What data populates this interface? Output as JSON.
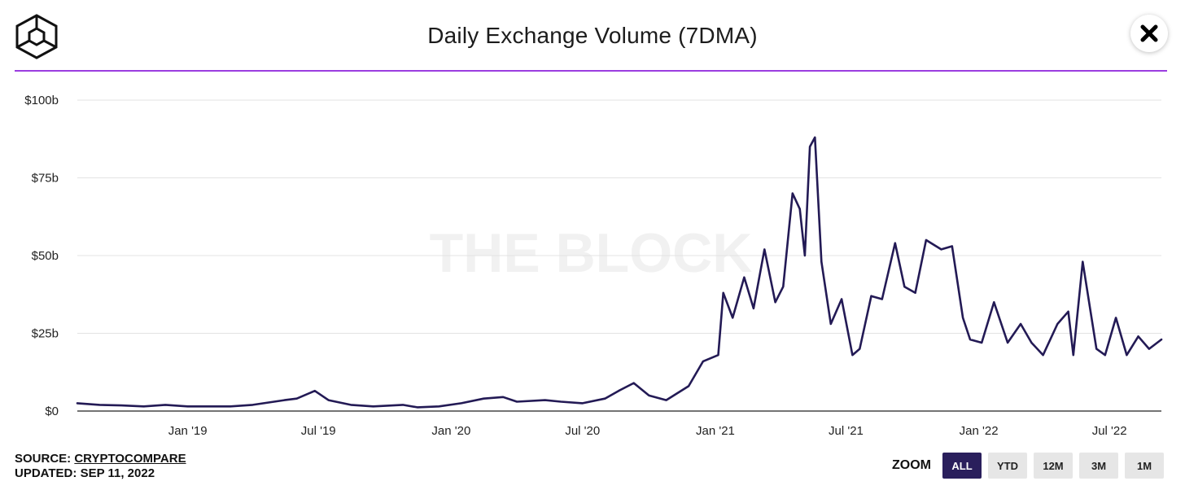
{
  "header": {
    "title": "Daily Exchange Volume (7DMA)",
    "logo_icon": "cube-logo-icon",
    "close_icon": "close-icon"
  },
  "footer": {
    "source_label": "SOURCE:",
    "source_name": "CRYPTOCOMPARE",
    "updated_label": "UPDATED:",
    "updated_date": "SEP 11, 2022"
  },
  "zoom": {
    "label": "ZOOM",
    "options": [
      "ALL",
      "YTD",
      "12M",
      "3M",
      "1M"
    ],
    "selected": "ALL"
  },
  "colors": {
    "line": "#231a55",
    "accent_divider": "#9b3de0",
    "zoom_active": "#2a1f5c"
  },
  "watermark": "THE BLOCK",
  "chart_data": {
    "type": "line",
    "title": "Daily Exchange Volume (7DMA)",
    "xlabel": "",
    "ylabel": "",
    "ylim": [
      0,
      100
    ],
    "y_unit": "$ billions",
    "y_ticks": [
      "$0",
      "$25b",
      "$50b",
      "$75b",
      "$100b"
    ],
    "x_ticks": [
      "Jan '19",
      "Jul '19",
      "Jan '20",
      "Jul '20",
      "Jan '21",
      "Jul '21",
      "Jan '22",
      "Jul '22"
    ],
    "grid": true,
    "legend": "none",
    "series": [
      {
        "x": [
          "2018-08-01",
          "2018-09-01",
          "2018-10-01",
          "2018-11-01",
          "2018-12-01",
          "2019-01-01",
          "2019-02-01",
          "2019-03-01",
          "2019-04-01",
          "2019-05-15",
          "2019-06-01",
          "2019-06-26",
          "2019-07-15",
          "2019-08-15",
          "2019-09-15",
          "2019-10-26",
          "2019-11-15",
          "2019-12-15",
          "2020-01-15",
          "2020-02-15",
          "2020-03-13",
          "2020-04-01",
          "2020-05-10",
          "2020-06-01",
          "2020-07-01",
          "2020-08-01",
          "2020-08-20",
          "2020-09-10",
          "2020-10-01",
          "2020-10-25",
          "2020-11-25",
          "2020-12-15",
          "2021-01-05",
          "2021-01-12",
          "2021-01-25",
          "2021-02-10",
          "2021-02-23",
          "2021-03-10",
          "2021-03-25",
          "2021-04-05",
          "2021-04-18",
          "2021-04-28",
          "2021-05-05",
          "2021-05-12",
          "2021-05-19",
          "2021-05-28",
          "2021-06-10",
          "2021-06-25",
          "2021-07-10",
          "2021-07-20",
          "2021-08-05",
          "2021-08-20",
          "2021-09-07",
          "2021-09-20",
          "2021-10-05",
          "2021-10-20",
          "2021-11-10",
          "2021-11-25",
          "2021-12-10",
          "2021-12-20",
          "2022-01-05",
          "2022-01-22",
          "2022-02-10",
          "2022-02-28",
          "2022-03-15",
          "2022-03-31",
          "2022-04-20",
          "2022-05-05",
          "2022-05-12",
          "2022-05-25",
          "2022-06-13",
          "2022-06-25",
          "2022-07-10",
          "2022-07-25",
          "2022-08-10",
          "2022-08-25",
          "2022-09-11"
        ],
        "values": [
          2.5,
          2,
          1.8,
          1.5,
          2,
          1.5,
          1.5,
          1.5,
          2,
          3.5,
          4,
          6.5,
          3.5,
          2,
          1.5,
          2,
          1.2,
          1.5,
          2.5,
          4,
          4.5,
          3,
          3.5,
          3,
          2.5,
          4,
          6.5,
          9,
          5,
          3.5,
          8,
          16,
          18,
          38,
          30,
          43,
          33,
          52,
          35,
          40,
          70,
          65,
          50,
          85,
          88,
          48,
          28,
          36,
          18,
          20,
          37,
          36,
          54,
          40,
          38,
          55,
          52,
          53,
          30,
          23,
          22,
          35,
          22,
          28,
          22,
          18,
          28,
          32,
          18,
          48,
          20,
          18,
          30,
          18,
          24,
          20,
          23
        ]
      }
    ]
  }
}
